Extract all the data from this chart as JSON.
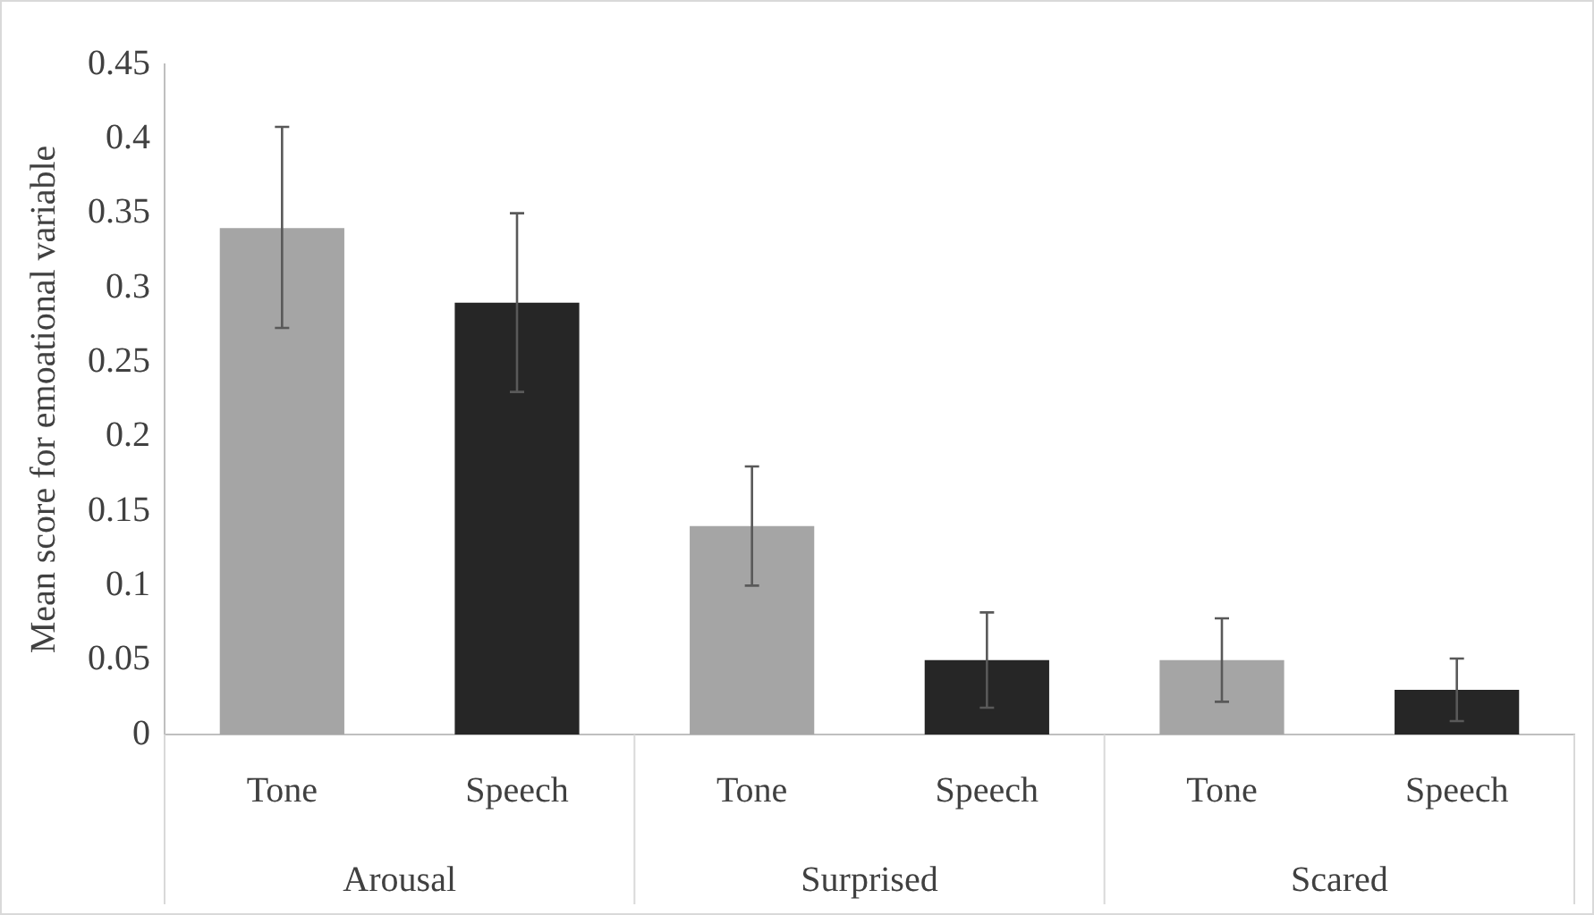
{
  "chart_data": {
    "type": "bar",
    "ylabel": "Mean score for emoational variable",
    "categories": [
      "Arousal",
      "Surprised",
      "Scared"
    ],
    "series": [
      {
        "name": "Tone",
        "color": "#a5a5a5",
        "values": [
          0.34,
          0.14,
          0.05
        ],
        "errors": [
          [
            0.273,
            0.408
          ],
          [
            0.1,
            0.18
          ],
          [
            0.022,
            0.078
          ]
        ]
      },
      {
        "name": "Speech",
        "color": "#262626",
        "values": [
          0.29,
          0.05,
          0.03
        ],
        "errors": [
          [
            0.23,
            0.35
          ],
          [
            0.018,
            0.082
          ],
          [
            0.009,
            0.051
          ]
        ]
      }
    ],
    "ylim": [
      0,
      0.45
    ],
    "yticks": [
      0,
      0.05,
      0.1,
      0.15,
      0.2,
      0.25,
      0.3,
      0.35,
      0.4,
      0.45
    ]
  }
}
